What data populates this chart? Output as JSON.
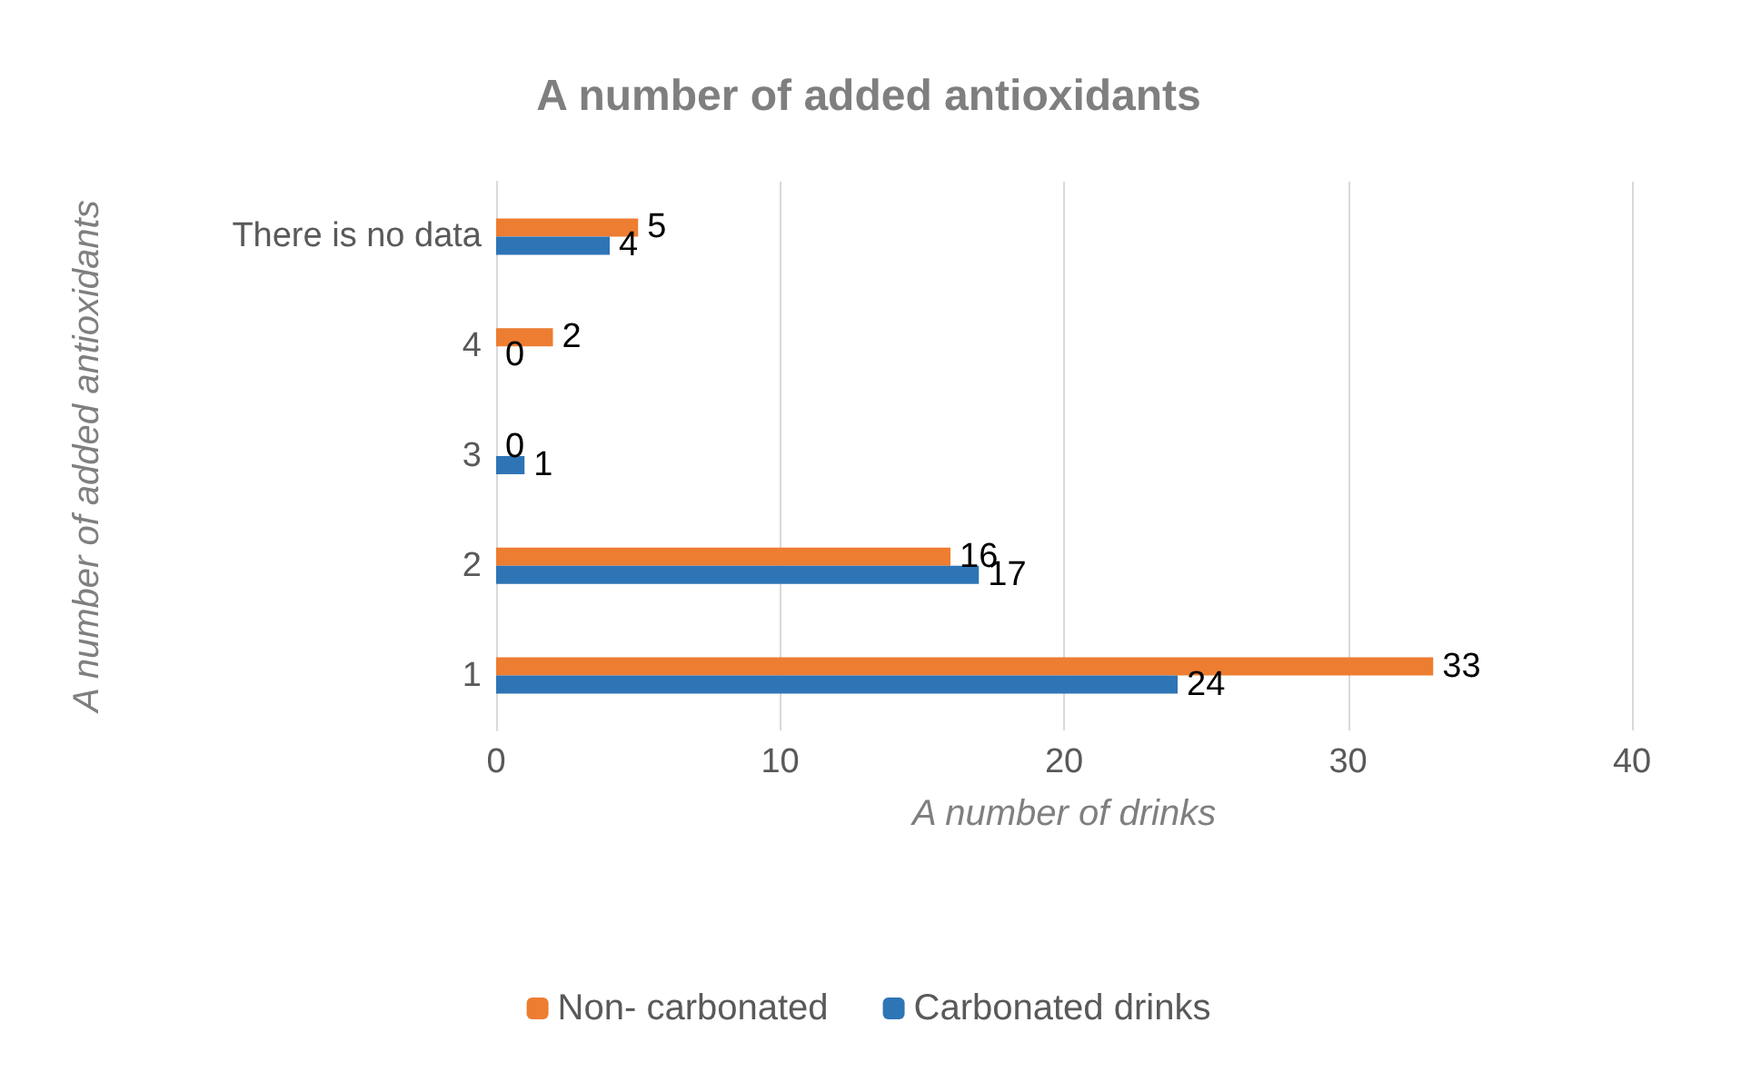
{
  "chart_data": {
    "type": "bar",
    "orientation": "horizontal",
    "title": "A number of added antioxidants",
    "xlabel": "A number of drinks",
    "ylabel": "A number of added antioxidants",
    "categories": [
      "There is no data",
      "4",
      "3",
      "2",
      "1"
    ],
    "series": [
      {
        "name": "Non- carbonated",
        "color": "#ed7d31",
        "values": [
          5,
          2,
          0,
          16,
          33
        ]
      },
      {
        "name": "Carbonated drinks",
        "color": "#2e75b6",
        "values": [
          4,
          0,
          1,
          17,
          24
        ]
      }
    ],
    "xlim": [
      0,
      40
    ],
    "xticks": [
      0,
      10,
      20,
      30,
      40
    ],
    "grid": "x",
    "legend": "bottom",
    "data_labels": true
  }
}
